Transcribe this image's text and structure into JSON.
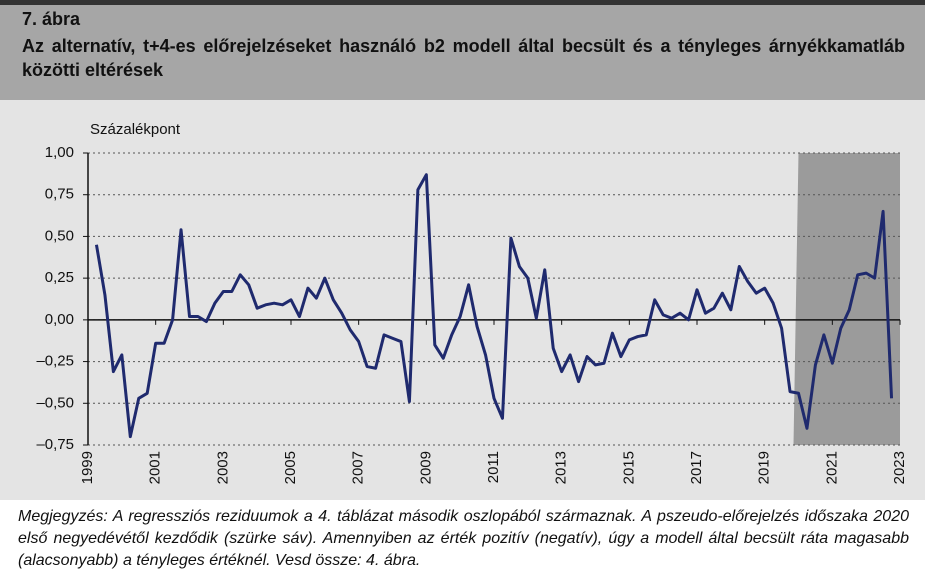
{
  "header": {
    "label": "7. ábra",
    "title": "Az alternatív, t+4-es előrejelzéseket használó b2 modell által becsült és a tényleges árnyékkamatláb közötti eltérések"
  },
  "chart_data": {
    "type": "line",
    "y_axis_label": "Százalékpont",
    "x": [
      1999.25,
      1999.5,
      1999.75,
      2000,
      2000.25,
      2000.5,
      2000.75,
      2001,
      2001.25,
      2001.5,
      2001.75,
      2002,
      2002.25,
      2002.5,
      2002.75,
      2003,
      2003.25,
      2003.5,
      2003.75,
      2004,
      2004.25,
      2004.5,
      2004.75,
      2005,
      2005.25,
      2005.5,
      2005.75,
      2006,
      2006.25,
      2006.5,
      2006.75,
      2007,
      2007.25,
      2007.5,
      2007.75,
      2008,
      2008.25,
      2008.5,
      2008.75,
      2009,
      2009.25,
      2009.5,
      2009.75,
      2010,
      2010.25,
      2010.5,
      2010.75,
      2011,
      2011.25,
      2011.5,
      2011.75,
      2012,
      2012.25,
      2012.5,
      2012.75,
      2013,
      2013.25,
      2013.5,
      2013.75,
      2014,
      2014.25,
      2014.5,
      2014.75,
      2015,
      2015.25,
      2015.5,
      2015.75,
      2016,
      2016.25,
      2016.5,
      2016.75,
      2017,
      2017.25,
      2017.5,
      2017.75,
      2018,
      2018.25,
      2018.5,
      2018.75,
      2019,
      2019.25,
      2019.5,
      2019.75,
      2020,
      2020.25,
      2020.5,
      2020.75,
      2021,
      2021.25,
      2021.5,
      2021.75,
      2022,
      2022.25,
      2022.5,
      2022.75
    ],
    "series": [
      {
        "name": "Eltérés",
        "color": "#1f2a6e",
        "values": [
          0.45,
          0.15,
          -0.31,
          -0.21,
          -0.7,
          -0.47,
          -0.44,
          -0.14,
          -0.14,
          0.0,
          0.54,
          0.02,
          0.02,
          -0.01,
          0.1,
          0.17,
          0.17,
          0.27,
          0.21,
          0.07,
          0.09,
          0.1,
          0.09,
          0.12,
          0.02,
          0.19,
          0.13,
          0.25,
          0.12,
          0.04,
          -0.06,
          -0.13,
          -0.28,
          -0.29,
          -0.09,
          -0.11,
          -0.13,
          -0.49,
          0.78,
          0.87,
          -0.15,
          -0.23,
          -0.09,
          0.02,
          0.21,
          -0.04,
          -0.21,
          -0.47,
          -0.59,
          0.49,
          0.32,
          0.25,
          0.01,
          0.3,
          -0.17,
          -0.31,
          -0.21,
          -0.37,
          -0.22,
          -0.27,
          -0.26,
          -0.08,
          -0.22,
          -0.12,
          -0.1,
          -0.09,
          0.12,
          0.03,
          0.01,
          0.04,
          0.0,
          0.18,
          0.04,
          0.07,
          0.16,
          0.06,
          0.32,
          0.23,
          0.16,
          0.19,
          0.1,
          -0.05,
          -0.43,
          -0.44,
          -0.65,
          -0.27,
          -0.09,
          -0.26,
          -0.05,
          0.06,
          0.27,
          0.28,
          0.25,
          0.65,
          -0.47
        ]
      }
    ],
    "highlight_x": [
      2020,
      2023
    ],
    "highlight_color": "#9b9b9b",
    "xlim": [
      1999,
      2023
    ],
    "xticks": [
      1999,
      2001,
      2003,
      2005,
      2007,
      2009,
      2011,
      2013,
      2015,
      2017,
      2019,
      2021,
      2023
    ],
    "ylim": [
      -0.75,
      1
    ],
    "yticks": [
      {
        "value": -0.75,
        "label": "–0,75"
      },
      {
        "value": -0.5,
        "label": "–0,50"
      },
      {
        "value": -0.25,
        "label": "–0,25"
      },
      {
        "value": 0,
        "label": "0,00"
      },
      {
        "value": 0.25,
        "label": "0,25"
      },
      {
        "value": 0.5,
        "label": "0,50"
      },
      {
        "value": 0.75,
        "label": "0,75"
      },
      {
        "value": 1,
        "label": "1,00"
      }
    ],
    "grid": true
  },
  "note": "Megjegyzés: A regressziós reziduumok a 4. táblázat második oszlopából származnak. A pszeudo-előrejelzés időszaka 2020 első negyedévétől kezdődik (szürke sáv). Amennyiben az érték pozitív (negatív), úgy a modell által becsült ráta magasabb (alacsonyabb) a tényleges értéknél. Vesd össze: 4. ábra."
}
